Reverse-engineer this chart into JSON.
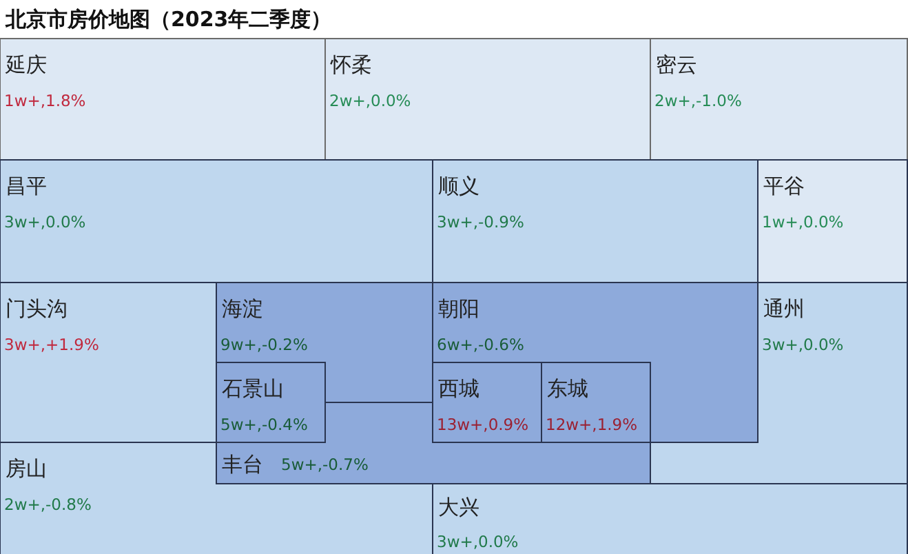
{
  "chart_data": {
    "type": "other",
    "title": "北京市房价地图（2023年二季度）",
    "categories": [
      "延庆",
      "怀柔",
      "密云",
      "昌平",
      "顺义",
      "平谷",
      "门头沟",
      "海淀",
      "朝阳",
      "通州",
      "石景山",
      "西城",
      "东城",
      "丰台",
      "房山",
      "大兴"
    ],
    "values": [
      1.8,
      0.0,
      -1.0,
      0.0,
      -0.9,
      0.0,
      1.9,
      -0.2,
      -0.6,
      0.0,
      -0.4,
      0.9,
      1.9,
      -0.7,
      -0.8,
      0.0
    ],
    "value_labels": [
      "1w+,1.8%",
      "2w+,0.0%",
      "2w+,-1.0%",
      "3w+,0.0%",
      "3w+,-0.9%",
      "1w+,0.0%",
      "3w+,+1.9%",
      "9w+,-0.2%",
      "6w+,-0.6%",
      "3w+,0.0%",
      "5w+,-0.4%",
      "13w+,0.9%",
      "12w+,1.9%",
      "5w+,-0.7%",
      "2w+,-0.8%",
      "3w+,0.0%"
    ],
    "colors": [
      "#dde8f4",
      "#dde8f4",
      "#dde8f4",
      "#bfd7ee",
      "#bfd7ee",
      "#dde8f4",
      "#bfd7ee",
      "#8eaadb",
      "#8eaadb",
      "#bfd7ee",
      "#8eaadb",
      "#8eaadb",
      "#8eaadb",
      "#8eaadb",
      "#bfd7ee",
      "#bfd7ee"
    ]
  }
}
